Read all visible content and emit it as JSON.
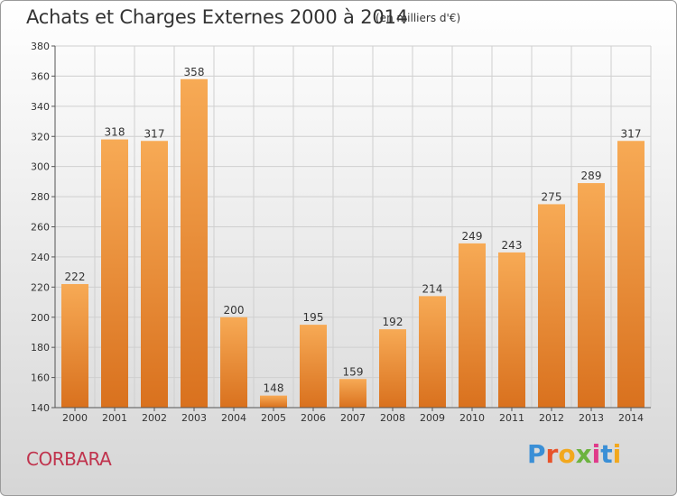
{
  "title": "Achats et Charges Externes 2000 à 2014",
  "unit_note": "(en milliers d'€)",
  "location": "CORBARA",
  "brand": "Proxiti",
  "colors": {
    "bar_light": "#f7aa55",
    "bar_dark": "#d9711e",
    "grid": "#cfcfcf",
    "location_text": "#c0334d"
  },
  "chart_data": {
    "type": "bar",
    "categories": [
      "2000",
      "2001",
      "2002",
      "2003",
      "2004",
      "2005",
      "2006",
      "2007",
      "2008",
      "2009",
      "2010",
      "2011",
      "2012",
      "2013",
      "2014"
    ],
    "values": [
      222,
      318,
      317,
      358,
      200,
      148,
      195,
      159,
      192,
      214,
      249,
      243,
      275,
      289,
      317
    ],
    "ylim": [
      140,
      380
    ],
    "yticks": [
      140,
      160,
      180,
      200,
      220,
      240,
      260,
      280,
      300,
      320,
      340,
      360,
      380
    ],
    "grid": true
  }
}
